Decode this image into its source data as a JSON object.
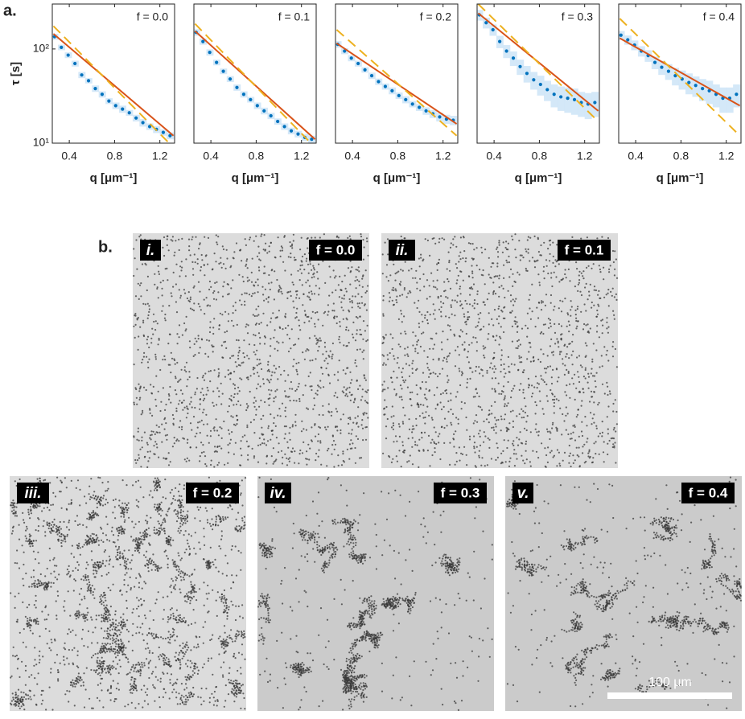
{
  "panel_a_label": "a.",
  "chart_data": [
    {
      "type": "line",
      "annotation": "f = 0.0",
      "xlabel": "q [μm⁻¹]",
      "ylabel": "τ [s]",
      "xlim": [
        0.25,
        1.33
      ],
      "xticks": [
        0.4,
        0.8,
        1.2
      ],
      "ylim": [
        10,
        300
      ],
      "log_y": true,
      "yticks": [
        {
          "value": 10,
          "label": "10¹"
        },
        {
          "value": 100,
          "label": "10²"
        }
      ],
      "series": [
        {
          "style": "dots",
          "color": "#0072bd",
          "x": [
            0.27,
            0.33,
            0.39,
            0.45,
            0.51,
            0.57,
            0.63,
            0.69,
            0.75,
            0.81,
            0.87,
            0.93,
            0.99,
            1.05,
            1.11,
            1.17,
            1.23,
            1.29
          ],
          "values": [
            135,
            104,
            86,
            70,
            53,
            46,
            38,
            33,
            28,
            25,
            23,
            21,
            18.5,
            16.5,
            15,
            14,
            13,
            12
          ],
          "errors": [
            10,
            7,
            6,
            5,
            4,
            3,
            3,
            2.5,
            2,
            2,
            2,
            1.5,
            1.5,
            1.5,
            1.2,
            1.2,
            1,
            1
          ]
        },
        {
          "style": "solid",
          "color": "#d95319",
          "x": [
            0.26,
            1.32
          ],
          "values": [
            145,
            12
          ]
        },
        {
          "style": "dashed",
          "color": "#edb120",
          "x": [
            0.26,
            1.32
          ],
          "values": [
            175,
            9
          ]
        }
      ]
    },
    {
      "type": "line",
      "annotation": "f = 0.1",
      "xlabel": "q [μm⁻¹]",
      "xlim": [
        0.25,
        1.33
      ],
      "xticks": [
        0.4,
        0.8,
        1.2
      ],
      "ylim": [
        10,
        300
      ],
      "log_y": true,
      "series": [
        {
          "style": "dots",
          "color": "#0072bd",
          "x": [
            0.27,
            0.33,
            0.39,
            0.45,
            0.51,
            0.57,
            0.63,
            0.69,
            0.75,
            0.81,
            0.87,
            0.93,
            0.99,
            1.05,
            1.11,
            1.17,
            1.23,
            1.29
          ],
          "values": [
            150,
            120,
            92,
            72,
            58,
            48,
            39,
            33,
            29,
            25,
            22,
            19.5,
            17,
            15,
            13.5,
            12.5,
            11.5,
            11
          ],
          "errors": [
            12,
            9,
            7,
            5,
            4,
            3.5,
            3,
            2.5,
            2,
            2,
            1.8,
            1.5,
            1.3,
            1.2,
            1.1,
            1,
            1,
            1
          ]
        },
        {
          "style": "solid",
          "color": "#d95319",
          "x": [
            0.26,
            1.32
          ],
          "values": [
            155,
            11
          ]
        },
        {
          "style": "dashed",
          "color": "#edb120",
          "x": [
            0.26,
            1.32
          ],
          "values": [
            185,
            9
          ]
        }
      ]
    },
    {
      "type": "line",
      "annotation": "f = 0.2",
      "xlabel": "q [μm⁻¹]",
      "xlim": [
        0.25,
        1.33
      ],
      "xticks": [
        0.4,
        0.8,
        1.2
      ],
      "ylim": [
        10,
        300
      ],
      "log_y": true,
      "series": [
        {
          "style": "dots",
          "color": "#0072bd",
          "x": [
            0.27,
            0.33,
            0.39,
            0.45,
            0.51,
            0.57,
            0.63,
            0.69,
            0.75,
            0.81,
            0.87,
            0.93,
            0.99,
            1.05,
            1.11,
            1.17,
            1.23,
            1.29
          ],
          "values": [
            112,
            95,
            80,
            70,
            60,
            52,
            45,
            40,
            36,
            32,
            29,
            26,
            24,
            22,
            20.5,
            19,
            18,
            17.5
          ],
          "errors": [
            9,
            7,
            6,
            5,
            4,
            4,
            3.5,
            3,
            3,
            2.5,
            2.5,
            2,
            2,
            2,
            2,
            2,
            2,
            2
          ]
        },
        {
          "style": "solid",
          "color": "#d95319",
          "x": [
            0.26,
            1.32
          ],
          "values": [
            115,
            16
          ]
        },
        {
          "style": "dashed",
          "color": "#edb120",
          "x": [
            0.26,
            1.32
          ],
          "values": [
            160,
            12
          ]
        }
      ]
    },
    {
      "type": "line",
      "annotation": "f = 0.3",
      "xlabel": "q [μm⁻¹]",
      "xlim": [
        0.25,
        1.33
      ],
      "xticks": [
        0.4,
        0.8,
        1.2
      ],
      "ylim": [
        10,
        300
      ],
      "log_y": true,
      "series": [
        {
          "style": "dots",
          "color": "#0072bd",
          "x": [
            0.27,
            0.33,
            0.39,
            0.45,
            0.51,
            0.57,
            0.63,
            0.69,
            0.75,
            0.81,
            0.87,
            0.93,
            0.99,
            1.05,
            1.11,
            1.17,
            1.23,
            1.29
          ],
          "values": [
            230,
            190,
            160,
            120,
            95,
            80,
            65,
            55,
            47,
            42,
            37,
            33,
            31,
            30,
            29,
            27,
            26,
            27
          ],
          "errors": [
            30,
            25,
            22,
            18,
            15,
            14,
            12,
            11,
            10,
            10,
            9,
            9,
            9,
            9,
            9,
            8,
            8,
            8
          ]
        },
        {
          "style": "solid",
          "color": "#d95319",
          "x": [
            0.26,
            1.32
          ],
          "values": [
            240,
            22
          ]
        },
        {
          "style": "dashed",
          "color": "#edb120",
          "x": [
            0.26,
            1.32
          ],
          "values": [
            300,
            17
          ]
        }
      ]
    },
    {
      "type": "line",
      "annotation": "f = 0.4",
      "xlabel": "q [μm⁻¹]",
      "xlim": [
        0.25,
        1.33
      ],
      "xticks": [
        0.4,
        0.8,
        1.2
      ],
      "ylim": [
        10,
        300
      ],
      "log_y": true,
      "series": [
        {
          "style": "dots",
          "color": "#0072bd",
          "x": [
            0.27,
            0.33,
            0.39,
            0.45,
            0.51,
            0.57,
            0.63,
            0.69,
            0.75,
            0.81,
            0.87,
            0.93,
            0.99,
            1.05,
            1.11,
            1.17,
            1.23,
            1.29
          ],
          "values": [
            140,
            125,
            110,
            95,
            85,
            72,
            64,
            58,
            52,
            48,
            44,
            41,
            38,
            36,
            33,
            30,
            30,
            33
          ],
          "errors": [
            15,
            14,
            13,
            12,
            12,
            11,
            11,
            11,
            11,
            11,
            11,
            10,
            10,
            10,
            9,
            9,
            9,
            9
          ]
        },
        {
          "style": "solid",
          "color": "#d95319",
          "x": [
            0.26,
            1.32
          ],
          "values": [
            130,
            25
          ]
        },
        {
          "style": "dashed",
          "color": "#edb120",
          "x": [
            0.26,
            1.32
          ],
          "values": [
            210,
            12
          ]
        }
      ]
    }
  ],
  "panel_b": {
    "label": "b.",
    "images": [
      {
        "label": "i.",
        "condition": "f = 0.0"
      },
      {
        "label": "ii.",
        "condition": "f = 0.1"
      },
      {
        "label": "iii.",
        "condition": "f = 0.2"
      },
      {
        "label": "iv.",
        "condition": "f = 0.3"
      },
      {
        "label": "v.",
        "condition": "f = 0.4"
      }
    ],
    "scale_bar": "100 μm"
  }
}
